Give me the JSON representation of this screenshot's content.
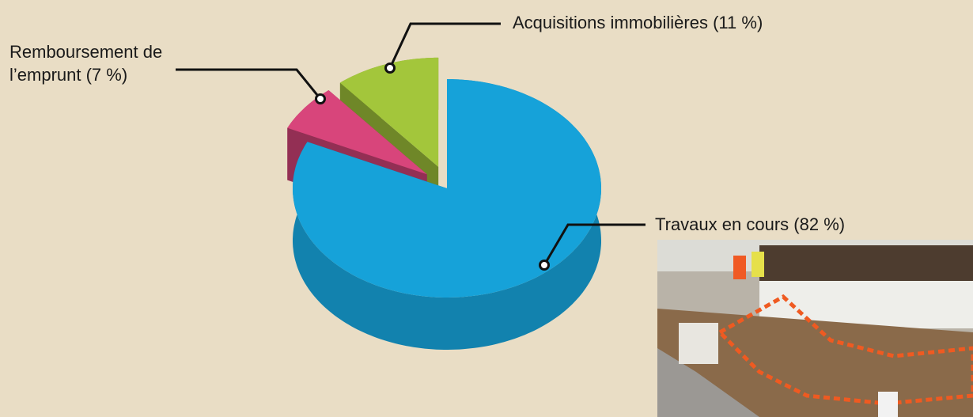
{
  "chart_data": {
    "type": "pie",
    "categories": [
      "Travaux en cours",
      "Remboursement de l’emprunt",
      "Acquisitions immobilières"
    ],
    "values": [
      82,
      7,
      11
    ],
    "value_labels": [
      "(82 %)",
      "(7 %)",
      "(11 %)"
    ],
    "colors": [
      "#16a2d9",
      "#d8457b",
      "#a3c63b"
    ]
  }
}
